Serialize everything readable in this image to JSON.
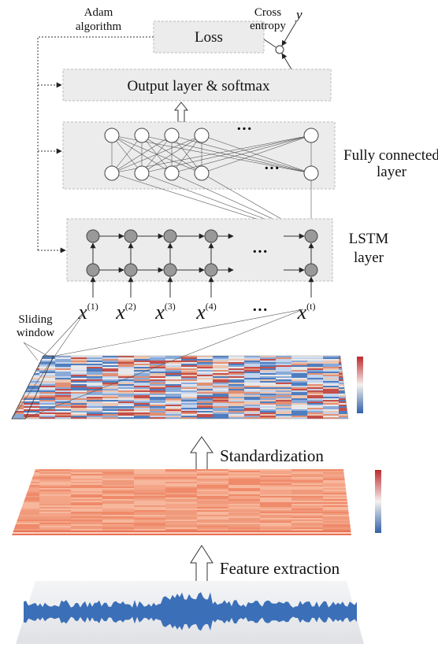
{
  "optimizer": {
    "lines": [
      "Adam",
      "algorithm"
    ]
  },
  "loss": {
    "label": "Loss",
    "function_lines": [
      "Cross",
      "entropy"
    ],
    "target": "y"
  },
  "layers": {
    "output": "Output layer & softmax",
    "fully_connected": [
      "Fully connected",
      "layer"
    ],
    "lstm": [
      "LSTM",
      "layer"
    ]
  },
  "inputs": {
    "symbol": "x",
    "superscripts": [
      "(1)",
      "(2)",
      "(3)",
      "(4)",
      "(t)"
    ],
    "ellipsis": "···"
  },
  "sliding_window": [
    "Sliding",
    "window"
  ],
  "steps": [
    "Standardization",
    "Feature extraction"
  ]
}
